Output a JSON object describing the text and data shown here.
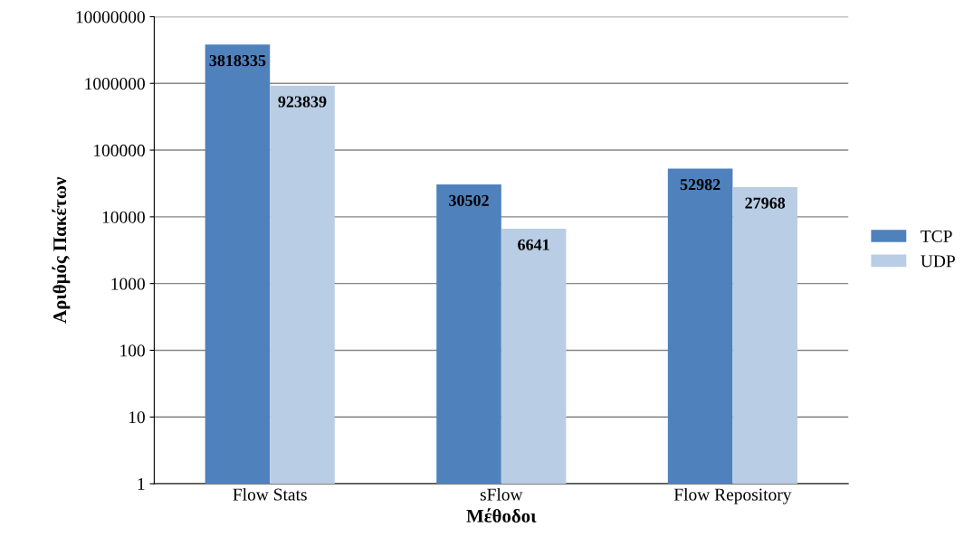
{
  "chart_data": {
    "type": "bar",
    "xlabel": "Μέθοδοι",
    "ylabel": "Αριθμός Πακέτων",
    "categories": [
      "Flow Stats",
      "sFlow",
      "Flow Repository"
    ],
    "series": [
      {
        "name": "TCP",
        "color": "#4f81bd",
        "values": [
          3818335,
          30502,
          52982
        ]
      },
      {
        "name": "UDP",
        "color": "#b9cde5",
        "values": [
          923839,
          6641,
          27968
        ]
      }
    ],
    "log": true,
    "ylim": [
      1,
      10000000
    ],
    "yticks": [
      1,
      10,
      100,
      1000,
      10000,
      100000,
      1000000,
      10000000
    ],
    "grid": "y",
    "legend": "right",
    "data_labels": true
  }
}
